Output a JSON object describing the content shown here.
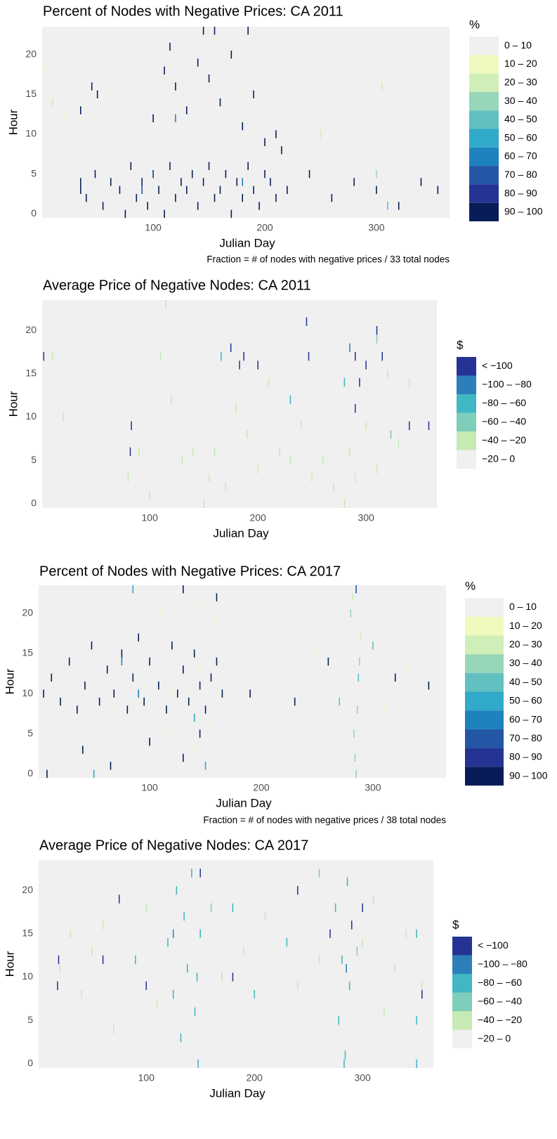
{
  "chart_data": [
    {
      "type": "heatmap",
      "title": "Percent of Nodes with Negative Prices: CA 2011",
      "x_label": "Julian Day",
      "y_label": "Hour",
      "caption": "Fraction = # of nodes with negative prices / 33 total nodes",
      "xlim": [
        0.5,
        365.5
      ],
      "xticks": [
        100,
        200,
        300
      ],
      "ylim": [
        -0.5,
        23.5
      ],
      "yticks": [
        0,
        5,
        10,
        15,
        20
      ],
      "legend": {
        "title": "%",
        "labels": [
          "0 – 10",
          "10 – 20",
          "20 – 30",
          "30 – 40",
          "40 – 50",
          "50 – 60",
          "60 – 70",
          "70 – 80",
          "80 – 90",
          "90 – 100"
        ],
        "colors": [
          "#f0f0f0",
          "#eff9bd",
          "#d0eeb7",
          "#98d6b9",
          "#62c0c0",
          "#31a9c9",
          "#1d82bd",
          "#2356a5",
          "#253494",
          "#081d58"
        ],
        "thresholds": [
          10,
          20,
          30,
          40,
          50,
          60,
          70,
          80,
          90
        ]
      },
      "x": [
        35,
        35,
        40,
        48,
        55,
        62,
        70,
        75,
        80,
        85,
        90,
        95,
        100,
        105,
        110,
        115,
        120,
        125,
        130,
        135,
        140,
        145,
        150,
        155,
        160,
        165,
        170,
        175,
        180,
        185,
        190,
        195,
        200,
        205,
        210,
        220,
        240,
        260,
        280,
        300,
        320,
        340,
        355,
        100,
        110,
        115,
        120,
        130,
        140,
        145,
        150,
        155,
        160,
        170,
        180,
        190,
        200,
        210,
        215,
        185,
        90,
        120,
        180,
        100,
        5,
        10,
        20,
        300,
        305,
        310,
        250,
        35,
        45,
        50
      ],
      "y": [
        3,
        4,
        2,
        5,
        1,
        4,
        3,
        0,
        6,
        2,
        4,
        1,
        5,
        3,
        0,
        6,
        2,
        4,
        3,
        5,
        1,
        4,
        6,
        2,
        3,
        5,
        0,
        4,
        2,
        6,
        3,
        1,
        5,
        4,
        2,
        3,
        5,
        2,
        4,
        3,
        1,
        4,
        3,
        12,
        18,
        21,
        16,
        13,
        19,
        23,
        17,
        23,
        14,
        20,
        11,
        15,
        9,
        10,
        8,
        23,
        3,
        12,
        4,
        5,
        18,
        14,
        12,
        5,
        16,
        1,
        10,
        13,
        16,
        15
      ],
      "values": [
        95,
        95,
        95,
        95,
        95,
        95,
        95,
        95,
        95,
        95,
        95,
        95,
        95,
        95,
        95,
        95,
        95,
        95,
        95,
        95,
        95,
        95,
        95,
        95,
        95,
        95,
        95,
        95,
        95,
        95,
        95,
        95,
        95,
        95,
        95,
        95,
        95,
        95,
        95,
        95,
        95,
        95,
        95,
        95,
        95,
        95,
        95,
        95,
        95,
        95,
        95,
        95,
        95,
        95,
        95,
        95,
        95,
        95,
        95,
        95,
        75,
        65,
        65,
        75,
        15,
        25,
        15,
        35,
        25,
        45,
        25,
        95,
        95,
        95
      ]
    },
    {
      "type": "heatmap",
      "title": "Average Price of Negative Nodes: CA 2011",
      "x_label": "Julian Day",
      "y_label": "Hour",
      "xlim": [
        0.5,
        365.5
      ],
      "xticks": [
        100,
        200,
        300
      ],
      "ylim": [
        -0.5,
        23.5
      ],
      "yticks": [
        0,
        5,
        10,
        15,
        20
      ],
      "legend": {
        "title": "$",
        "labels": [
          "< −100",
          "−100 – −80",
          "−80 – −60",
          "−60 – −40",
          "−40 – −20",
          "−20 – 0"
        ],
        "colors": [
          "#253494",
          "#2c7fb8",
          "#41b6c4",
          "#7fcdbb",
          "#c7e9b4",
          "#f0f0f0"
        ],
        "thresholds": [
          -100,
          -80,
          -60,
          -40,
          -20
        ]
      },
      "x": [
        80,
        90,
        100,
        110,
        120,
        130,
        140,
        150,
        155,
        160,
        170,
        180,
        190,
        200,
        210,
        220,
        230,
        240,
        250,
        260,
        270,
        280,
        285,
        290,
        300,
        310,
        320,
        330,
        340,
        2,
        83,
        82,
        175,
        183,
        187,
        200,
        245,
        247,
        285,
        290,
        294,
        290,
        300,
        310,
        315,
        340,
        358,
        230,
        166,
        280,
        323,
        310,
        115,
        20,
        10
      ],
      "y": [
        3,
        6,
        1,
        17,
        12,
        5,
        6,
        0,
        3,
        6,
        2,
        11,
        8,
        4,
        14,
        6,
        5,
        9,
        3,
        5,
        2,
        0,
        6,
        3,
        9,
        4,
        15,
        7,
        14,
        17,
        9,
        6,
        18,
        16,
        17,
        16,
        21,
        17,
        18,
        17,
        14,
        11,
        16,
        20,
        17,
        9,
        9,
        12,
        17,
        14,
        8,
        19,
        23,
        10,
        17
      ],
      "values": [
        -30,
        -30,
        -30,
        -30,
        -30,
        -30,
        -30,
        -30,
        -30,
        -30,
        -30,
        -30,
        -30,
        -30,
        -30,
        -30,
        -30,
        -30,
        -30,
        -30,
        -30,
        -30,
        -30,
        -30,
        -30,
        -30,
        -30,
        -30,
        -30,
        -110,
        -110,
        -110,
        -110,
        -110,
        -110,
        -110,
        -110,
        -110,
        -90,
        -110,
        -110,
        -110,
        -110,
        -110,
        -110,
        -110,
        -110,
        -70,
        -70,
        -70,
        -50,
        -50,
        -30,
        -30,
        -30
      ]
    },
    {
      "type": "heatmap",
      "title": "Percent of Nodes with Negative Prices: CA 2017",
      "x_label": "Julian Day",
      "y_label": "Hour",
      "caption": "Fraction = # of nodes with negative prices / 38 total nodes",
      "xlim": [
        0.5,
        365.5
      ],
      "xticks": [
        100,
        200,
        300
      ],
      "ylim": [
        -0.5,
        23.5
      ],
      "yticks": [
        0,
        5,
        10,
        15,
        20
      ],
      "legend": {
        "title": "%",
        "labels": [
          "0 – 10",
          "10 – 20",
          "20 – 30",
          "30 – 40",
          "40 – 50",
          "50 – 60",
          "60 – 70",
          "70 – 80",
          "80 – 90",
          "90 – 100"
        ],
        "colors": [
          "#f0f0f0",
          "#eff9bd",
          "#d0eeb7",
          "#98d6b9",
          "#62c0c0",
          "#31a9c9",
          "#1d82bd",
          "#2356a5",
          "#253494",
          "#081d58"
        ],
        "thresholds": [
          10,
          20,
          30,
          40,
          50,
          60,
          70,
          80,
          90
        ]
      },
      "x": [
        5,
        12,
        20,
        28,
        35,
        42,
        48,
        55,
        62,
        68,
        75,
        80,
        85,
        90,
        95,
        100,
        108,
        115,
        120,
        125,
        130,
        135,
        140,
        145,
        150,
        155,
        160,
        165,
        8,
        40,
        65,
        100,
        130,
        145,
        130,
        160,
        260,
        350,
        190,
        230,
        320,
        110,
        118,
        125,
        132,
        140,
        148,
        152,
        158,
        200,
        250,
        310,
        330,
        120,
        145,
        280,
        283,
        285,
        287,
        289,
        284,
        286,
        282,
        288,
        270,
        300,
        150,
        85,
        90,
        75,
        50,
        140,
        285
      ],
      "y": [
        10,
        12,
        9,
        14,
        8,
        11,
        16,
        9,
        13,
        10,
        15,
        8,
        12,
        17,
        9,
        14,
        11,
        8,
        16,
        10,
        13,
        9,
        15,
        11,
        8,
        12,
        14,
        10,
        0,
        3,
        1,
        4,
        2,
        5,
        23,
        22,
        14,
        11,
        10,
        9,
        12,
        20,
        5,
        22,
        18,
        3,
        21,
        6,
        19,
        12,
        15,
        8,
        13,
        10,
        13,
        20,
        5,
        0,
        12,
        17,
        2,
        8,
        22,
        14,
        9,
        16,
        1,
        23,
        10,
        14,
        0,
        7,
        23
      ],
      "values": [
        95,
        95,
        95,
        95,
        95,
        95,
        95,
        95,
        95,
        95,
        95,
        95,
        95,
        95,
        95,
        95,
        95,
        95,
        95,
        95,
        95,
        95,
        95,
        95,
        95,
        95,
        95,
        95,
        95,
        95,
        95,
        95,
        95,
        95,
        95,
        95,
        95,
        95,
        95,
        95,
        95,
        15,
        15,
        15,
        15,
        15,
        15,
        15,
        15,
        15,
        15,
        15,
        15,
        15,
        15,
        35,
        35,
        35,
        45,
        25,
        35,
        35,
        25,
        35,
        45,
        45,
        55,
        55,
        65,
        65,
        55,
        55,
        75
      ]
    },
    {
      "type": "heatmap",
      "title": "Average Price of Negative Nodes: CA 2017",
      "x_label": "Julian Day",
      "y_label": "Hour",
      "xlim": [
        0.5,
        365.5
      ],
      "xticks": [
        100,
        200,
        300
      ],
      "ylim": [
        -0.5,
        23.5
      ],
      "yticks": [
        0,
        5,
        10,
        15,
        20
      ],
      "legend": {
        "title": "$",
        "labels": [
          "< −100",
          "−100 – −80",
          "−80 – −60",
          "−60 – −40",
          "−40 – −20",
          "−20 – 0"
        ],
        "colors": [
          "#253494",
          "#2c7fb8",
          "#41b6c4",
          "#7fcdbb",
          "#c7e9b4",
          "#f0f0f0"
        ],
        "thresholds": [
          -100,
          -80,
          -60,
          -40,
          -20
        ]
      },
      "x": [
        120,
        125,
        128,
        132,
        135,
        138,
        142,
        145,
        148,
        150,
        147,
        275,
        278,
        281,
        284,
        286,
        288,
        290,
        283,
        350,
        350,
        350,
        180,
        200,
        90,
        230,
        20,
        30,
        40,
        50,
        60,
        70,
        100,
        110,
        170,
        190,
        210,
        240,
        260,
        300,
        310,
        320,
        330,
        340,
        355,
        18,
        60,
        75,
        100,
        150,
        180,
        240,
        270,
        290,
        300,
        355,
        19,
        285,
        125,
        160,
        260,
        295
      ],
      "y": [
        14,
        8,
        20,
        3,
        17,
        11,
        22,
        6,
        0,
        15,
        10,
        18,
        5,
        12,
        1,
        21,
        9,
        16,
        0,
        5,
        15,
        0,
        18,
        8,
        12,
        14,
        11,
        15,
        8,
        13,
        16,
        4,
        18,
        7,
        10,
        13,
        17,
        9,
        12,
        14,
        19,
        6,
        11,
        15,
        9,
        9,
        12,
        19,
        9,
        22,
        10,
        20,
        15,
        16,
        18,
        8,
        12,
        11,
        15,
        18,
        22,
        13
      ],
      "values": [
        -70,
        -70,
        -70,
        -70,
        -70,
        -70,
        -70,
        -70,
        -70,
        -70,
        -70,
        -70,
        -70,
        -70,
        -70,
        -70,
        -70,
        -70,
        -70,
        -70,
        -70,
        -70,
        -70,
        -70,
        -70,
        -70,
        -30,
        -30,
        -30,
        -30,
        -30,
        -30,
        -30,
        -30,
        -30,
        -30,
        -30,
        -30,
        -30,
        -30,
        -30,
        -30,
        -30,
        -30,
        -30,
        -110,
        -110,
        -110,
        -110,
        -110,
        -110,
        -110,
        -110,
        -110,
        -110,
        -110,
        -110,
        -90,
        -90,
        -50,
        -50,
        -50
      ]
    }
  ]
}
